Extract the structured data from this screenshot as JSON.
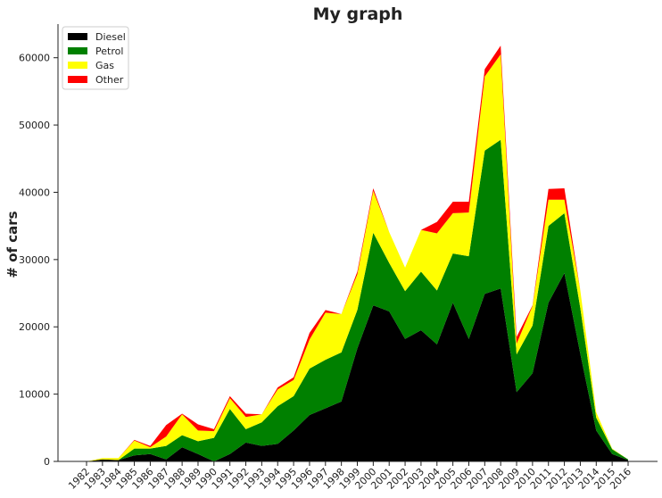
{
  "chart_data": {
    "type": "area",
    "stacked": true,
    "title": "My graph",
    "xlabel": "",
    "ylabel": "# of cars",
    "x": [
      "1982",
      "1983",
      "1984",
      "1985",
      "1986",
      "1987",
      "1988",
      "1989",
      "1990",
      "1991",
      "1992",
      "1993",
      "1994",
      "1995",
      "1996",
      "1997",
      "1998",
      "1999",
      "2000",
      "2001",
      "2002",
      "2003",
      "2004",
      "2005",
      "2006",
      "2007",
      "2008",
      "2009",
      "2010",
      "2011",
      "2012",
      "2013",
      "2014",
      "2015",
      "2016"
    ],
    "ylim": [
      0,
      65000
    ],
    "yticks": [
      0,
      10000,
      20000,
      30000,
      40000,
      50000,
      60000
    ],
    "legend_position": "top-left",
    "grid": false,
    "series": [
      {
        "name": "Diesel",
        "color": "#000000",
        "values": [
          0,
          300,
          200,
          900,
          1100,
          300,
          2100,
          1100,
          0,
          1100,
          2800,
          2300,
          2600,
          4600,
          6900,
          7900,
          8900,
          16800,
          23200,
          22300,
          18200,
          19500,
          17400,
          23600,
          18200,
          24900,
          25700,
          10300,
          13100,
          23600,
          28000,
          16000,
          4600,
          1100,
          200
        ]
      },
      {
        "name": "Petrol",
        "color": "#008000",
        "values": [
          0,
          0,
          0,
          1000,
          800,
          2000,
          1800,
          1900,
          3500,
          6700,
          2000,
          3500,
          5600,
          5100,
          6900,
          7200,
          7300,
          5700,
          10800,
          7200,
          7100,
          8700,
          8000,
          7300,
          12300,
          21300,
          22100,
          5600,
          7100,
          11400,
          8900,
          6800,
          1900,
          700,
          100
        ]
      },
      {
        "name": "Gas",
        "color": "#ffff00",
        "values": [
          0,
          200,
          300,
          1200,
          200,
          1400,
          3100,
          1600,
          1000,
          1600,
          1800,
          1200,
          2500,
          2400,
          4300,
          7000,
          5700,
          5300,
          6200,
          4600,
          3500,
          6200,
          8500,
          6000,
          6500,
          11000,
          12700,
          1600,
          2900,
          3900,
          2000,
          2600,
          800,
          100,
          0
        ]
      },
      {
        "name": "Other",
        "color": "#ff0000",
        "values": [
          0,
          0,
          0,
          100,
          200,
          1700,
          100,
          900,
          300,
          300,
          500,
          0,
          300,
          400,
          1000,
          400,
          0,
          400,
          400,
          0,
          0,
          0,
          1700,
          1700,
          1600,
          1100,
          1300,
          1000,
          100,
          1600,
          1700,
          0,
          0,
          0,
          0
        ]
      }
    ]
  }
}
